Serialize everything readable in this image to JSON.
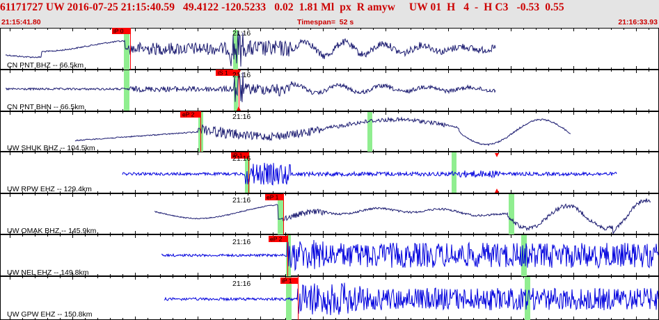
{
  "header": {
    "title": "61171727 UW 2016-07-25 21:15:40.59   49.4122 -120.5233   0.02  1.81 Ml  px  R amyw     UW 01  H   4  -  H C3   -0.53  0.55",
    "start_time": "21:15:41.80",
    "timespan": "Timespan=  52 s",
    "end_time": "21:16:33.93"
  },
  "colors": {
    "title_red": "#cc0000",
    "trace_navy": "#1a1a70",
    "trace_blue": "#0000dd",
    "pick_green": "#90ee90",
    "pick_red": "#ff0000"
  },
  "traces": [
    {
      "label": "CN PNT BHZ -- 66.5km",
      "pick": "iP 0",
      "minute_label": "21:16",
      "color": "navy"
    },
    {
      "label": "CN PNT BHN -- 66.5km",
      "pick": "iS 1",
      "minute_label": "21:16",
      "color": "navy"
    },
    {
      "label": "UW SHUK BHZ -- 104.5km",
      "pick": "eP 2",
      "minute_label": "21:16",
      "color": "navy"
    },
    {
      "label": "UW RPW EHZ -- 129.4km",
      "pick": "iP 1",
      "minute_label": "21:16",
      "color": "blue"
    },
    {
      "label": "UW OMAK BHZ -- 145.9km",
      "pick": "eP 1",
      "minute_label": "21:16",
      "color": "navy"
    },
    {
      "label": "UW NEL EHZ -- 149.8km",
      "pick": "eP 2",
      "minute_label": "21:16",
      "color": "blue"
    },
    {
      "label": "UW GPW EHZ -- 150.8km",
      "pick": "iP 1",
      "minute_label": "21:16",
      "color": "blue"
    }
  ]
}
